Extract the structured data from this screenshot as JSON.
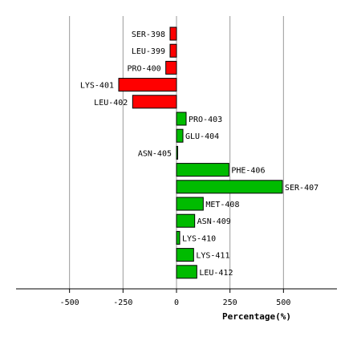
{
  "chart_data": {
    "type": "bar",
    "orientation": "horizontal",
    "categories": [
      "SER-398",
      "LEU-399",
      "PRO-400",
      "LYS-401",
      "LEU-402",
      "PRO-403",
      "GLU-404",
      "ASN-405",
      "PHE-406",
      "SER-407",
      "MET-408",
      "ASN-409",
      "LYS-410",
      "LYS-411",
      "LEU-412"
    ],
    "values": [
      -30,
      -30,
      -50,
      -270,
      -205,
      45,
      30,
      0,
      245,
      495,
      125,
      85,
      15,
      80,
      95
    ],
    "xlabel": "Percentage(%)",
    "xticks": [
      -500,
      -250,
      0,
      250,
      500
    ],
    "xlim": [
      -750,
      750
    ],
    "grid": true,
    "colors": {
      "negative": "#ff0000",
      "positive": "#00bb00",
      "outline": "#000000",
      "grid": "#999999"
    }
  }
}
